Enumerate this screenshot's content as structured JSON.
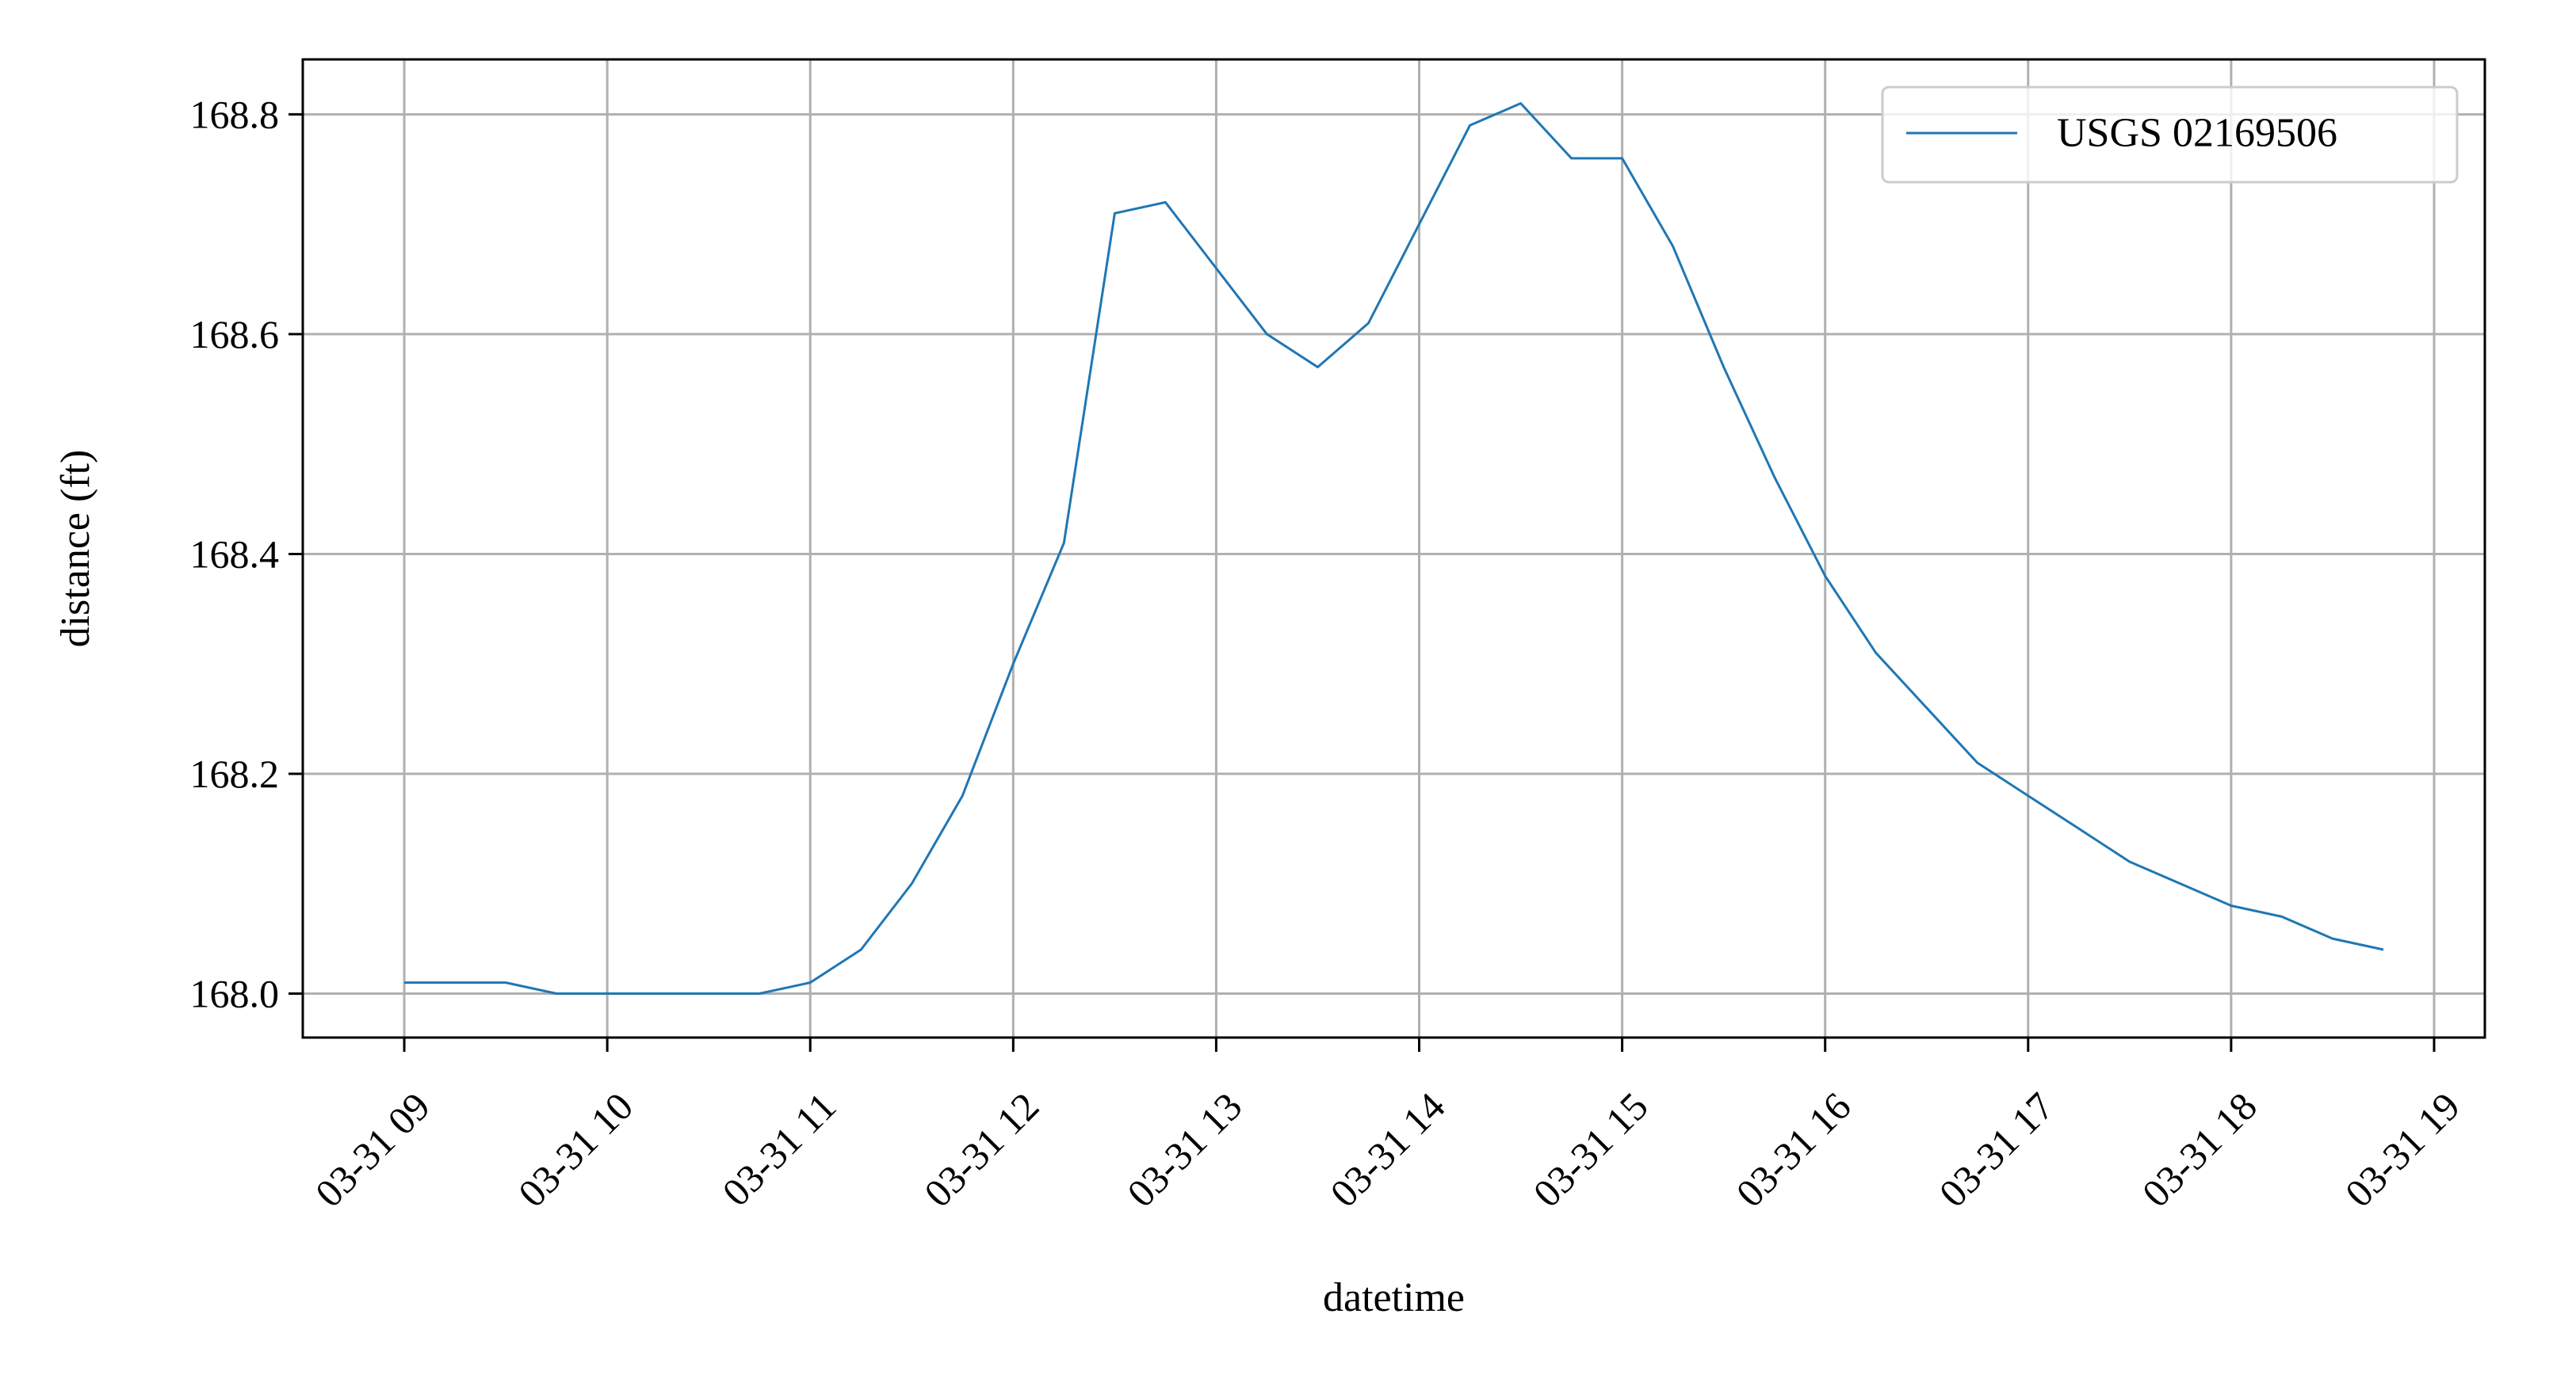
{
  "chart_data": {
    "type": "line",
    "title": "",
    "xlabel": "datetime",
    "ylabel": "distance (ft)",
    "x_tick_labels": [
      "03-31 09",
      "03-31 10",
      "03-31 11",
      "03-31 12",
      "03-31 13",
      "03-31 14",
      "03-31 15",
      "03-31 16",
      "03-31 17",
      "03-31 18",
      "03-31 19"
    ],
    "y_tick_labels": [
      "168.0",
      "168.2",
      "168.4",
      "168.6",
      "168.8"
    ],
    "xlim": [
      "03-31 08:30",
      "03-31 19:15"
    ],
    "ylim": [
      167.96,
      168.85
    ],
    "grid": true,
    "legend_position": "upper right",
    "series": [
      {
        "name": "USGS 02169506",
        "color": "#1f77b4",
        "x": [
          "03-31 09:00",
          "03-31 09:15",
          "03-31 09:30",
          "03-31 09:45",
          "03-31 10:00",
          "03-31 10:15",
          "03-31 10:30",
          "03-31 10:45",
          "03-31 11:00",
          "03-31 11:15",
          "03-31 11:30",
          "03-31 11:45",
          "03-31 12:00",
          "03-31 12:15",
          "03-31 12:30",
          "03-31 12:45",
          "03-31 13:00",
          "03-31 13:15",
          "03-31 13:30",
          "03-31 13:45",
          "03-31 14:00",
          "03-31 14:15",
          "03-31 14:30",
          "03-31 14:45",
          "03-31 15:00",
          "03-31 15:15",
          "03-31 15:30",
          "03-31 15:45",
          "03-31 16:00",
          "03-31 16:15",
          "03-31 16:30",
          "03-31 16:45",
          "03-31 17:00",
          "03-31 17:15",
          "03-31 17:30",
          "03-31 17:45",
          "03-31 18:00",
          "03-31 18:15",
          "03-31 18:30",
          "03-31 18:45"
        ],
        "values": [
          168.01,
          168.01,
          168.01,
          168.0,
          168.0,
          168.0,
          168.0,
          168.0,
          168.01,
          168.04,
          168.1,
          168.18,
          168.3,
          168.41,
          168.71,
          168.72,
          168.66,
          168.6,
          168.57,
          168.61,
          168.7,
          168.79,
          168.81,
          168.76,
          168.76,
          168.68,
          168.57,
          168.47,
          168.38,
          168.31,
          168.26,
          168.21,
          168.18,
          168.15,
          168.12,
          168.1,
          168.08,
          168.07,
          168.05,
          168.04
        ]
      }
    ]
  }
}
